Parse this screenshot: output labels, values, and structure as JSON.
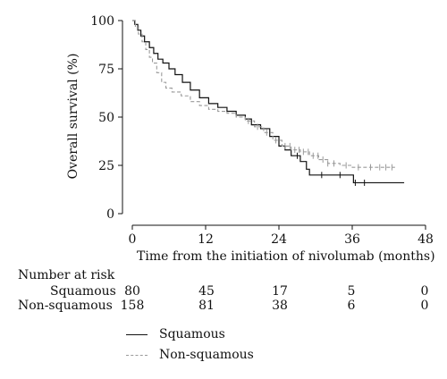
{
  "chart_data": {
    "type": "line",
    "title": "",
    "xlabel": "Time from the initiation of nivolumab (months)",
    "ylabel": "Overall survival (%)",
    "xlim": [
      0,
      48
    ],
    "ylim": [
      0,
      100
    ],
    "xticks": [
      0,
      12,
      24,
      36,
      48
    ],
    "yticks": [
      0,
      25,
      50,
      75,
      100
    ],
    "grid": false,
    "legend_position": "bottom-left",
    "series": [
      {
        "name": "Squamous",
        "color": "#111111",
        "style": "solid",
        "points": [
          [
            0,
            100
          ],
          [
            0.4,
            98
          ],
          [
            0.9,
            95
          ],
          [
            1.4,
            92
          ],
          [
            2,
            89
          ],
          [
            2.8,
            86
          ],
          [
            3.5,
            83
          ],
          [
            4.2,
            80
          ],
          [
            5,
            78
          ],
          [
            6,
            75
          ],
          [
            7,
            72
          ],
          [
            8.2,
            68
          ],
          [
            9.5,
            64
          ],
          [
            11,
            60
          ],
          [
            12.5,
            57
          ],
          [
            14,
            55
          ],
          [
            15.5,
            53
          ],
          [
            17,
            51
          ],
          [
            18.5,
            49
          ],
          [
            19.5,
            46
          ],
          [
            21,
            44
          ],
          [
            22.5,
            40
          ],
          [
            24,
            35
          ],
          [
            25,
            33
          ],
          [
            26,
            30
          ],
          [
            27.5,
            27
          ],
          [
            28.5,
            23
          ],
          [
            29,
            20
          ],
          [
            32,
            20
          ],
          [
            36,
            20
          ],
          [
            36.2,
            16
          ],
          [
            44.5,
            16
          ]
        ],
        "censor_x": [
          27,
          31,
          34,
          36.5,
          38
        ]
      },
      {
        "name": "Non-squamous",
        "color": "#9a9a9a",
        "style": "dashed",
        "points": [
          [
            0,
            100
          ],
          [
            0.5,
            97
          ],
          [
            1,
            93
          ],
          [
            1.6,
            89
          ],
          [
            2.2,
            85
          ],
          [
            2.8,
            81
          ],
          [
            3.3,
            78
          ],
          [
            4,
            73
          ],
          [
            4.8,
            68
          ],
          [
            5.5,
            65
          ],
          [
            6.5,
            63
          ],
          [
            8,
            61
          ],
          [
            9.5,
            58
          ],
          [
            11,
            56
          ],
          [
            12.5,
            54
          ],
          [
            14,
            53
          ],
          [
            15.5,
            52
          ],
          [
            17,
            50
          ],
          [
            18.5,
            48
          ],
          [
            20,
            45
          ],
          [
            21.5,
            42
          ],
          [
            23,
            38
          ],
          [
            24.5,
            35
          ],
          [
            26,
            33
          ],
          [
            27.5,
            32
          ],
          [
            29,
            30
          ],
          [
            30.5,
            28
          ],
          [
            32,
            26
          ],
          [
            34,
            25
          ],
          [
            36,
            24
          ],
          [
            38,
            24
          ],
          [
            43,
            24
          ]
        ],
        "censor_x": [
          19,
          20.5,
          22,
          23.5,
          25,
          25.8,
          26.6,
          27.3,
          28,
          28.8,
          29.6,
          30.4,
          31.2,
          32,
          33,
          35,
          37,
          39,
          40.5,
          41.5,
          42.5
        ]
      }
    ]
  },
  "risk_table": {
    "heading": "Number at risk",
    "rows": [
      {
        "label": "Squamous",
        "values": [
          "80",
          "45",
          "17",
          "5",
          "0"
        ]
      },
      {
        "label": "Non-squamous",
        "values": [
          "158",
          "81",
          "38",
          "6",
          "0"
        ]
      }
    ]
  },
  "legend": [
    {
      "label": "Squamous",
      "color": "#111111",
      "style": "solid"
    },
    {
      "label": "Non-squamous",
      "color": "#9a9a9a",
      "style": "dashed"
    }
  ]
}
